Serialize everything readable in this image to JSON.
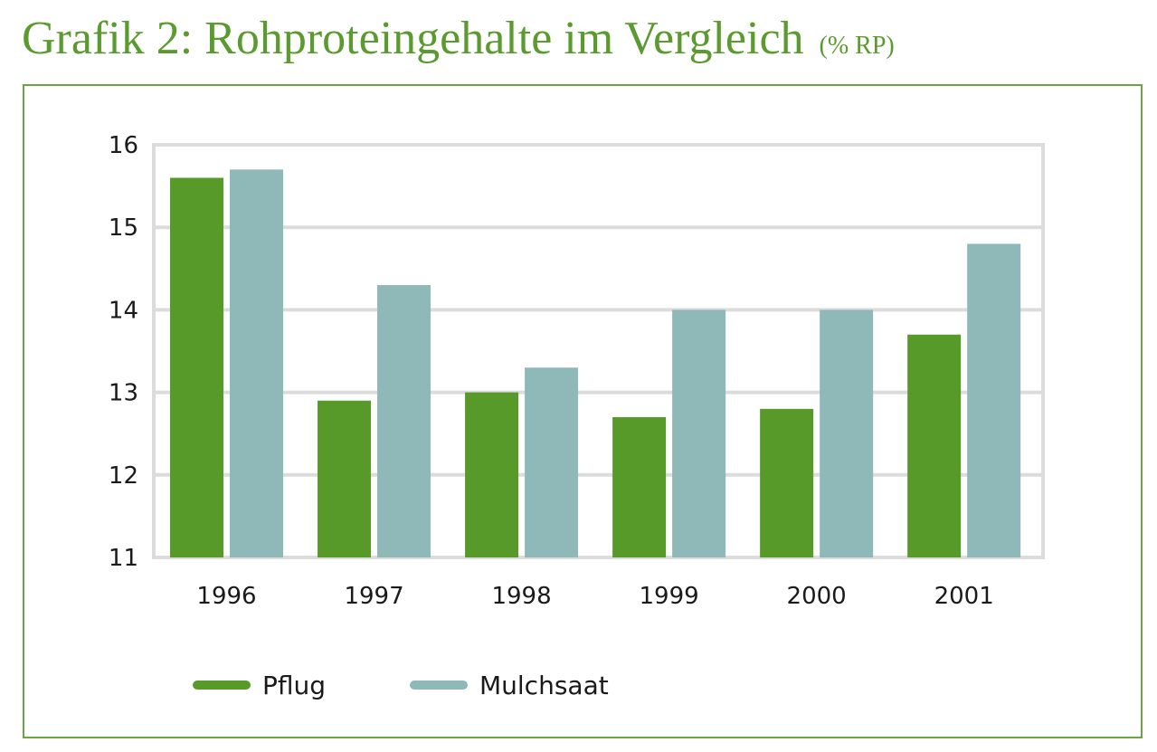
{
  "title": {
    "main": "Grafik 2: Rohproteingehalte im Vergleich",
    "unit": "(% RP)"
  },
  "chart_data": {
    "type": "bar",
    "title": "Grafik 2: Rohproteingehalte im Vergleich (% RP)",
    "xlabel": "",
    "ylabel": "",
    "ylim": [
      11,
      16
    ],
    "yticks": [
      "11",
      "12",
      "13",
      "14",
      "15",
      "16"
    ],
    "categories": [
      "1996",
      "1997",
      "1998",
      "1999",
      "2000",
      "2001"
    ],
    "series": [
      {
        "name": "Pflug",
        "color": "#579a2a",
        "values": [
          15.6,
          12.9,
          13.0,
          12.7,
          12.8,
          13.7
        ]
      },
      {
        "name": "Mulchsaat",
        "color": "#8fb8b8",
        "values": [
          15.7,
          14.3,
          13.3,
          14.0,
          14.0,
          14.8
        ]
      }
    ],
    "grid": true,
    "legend": "bottom-left"
  }
}
